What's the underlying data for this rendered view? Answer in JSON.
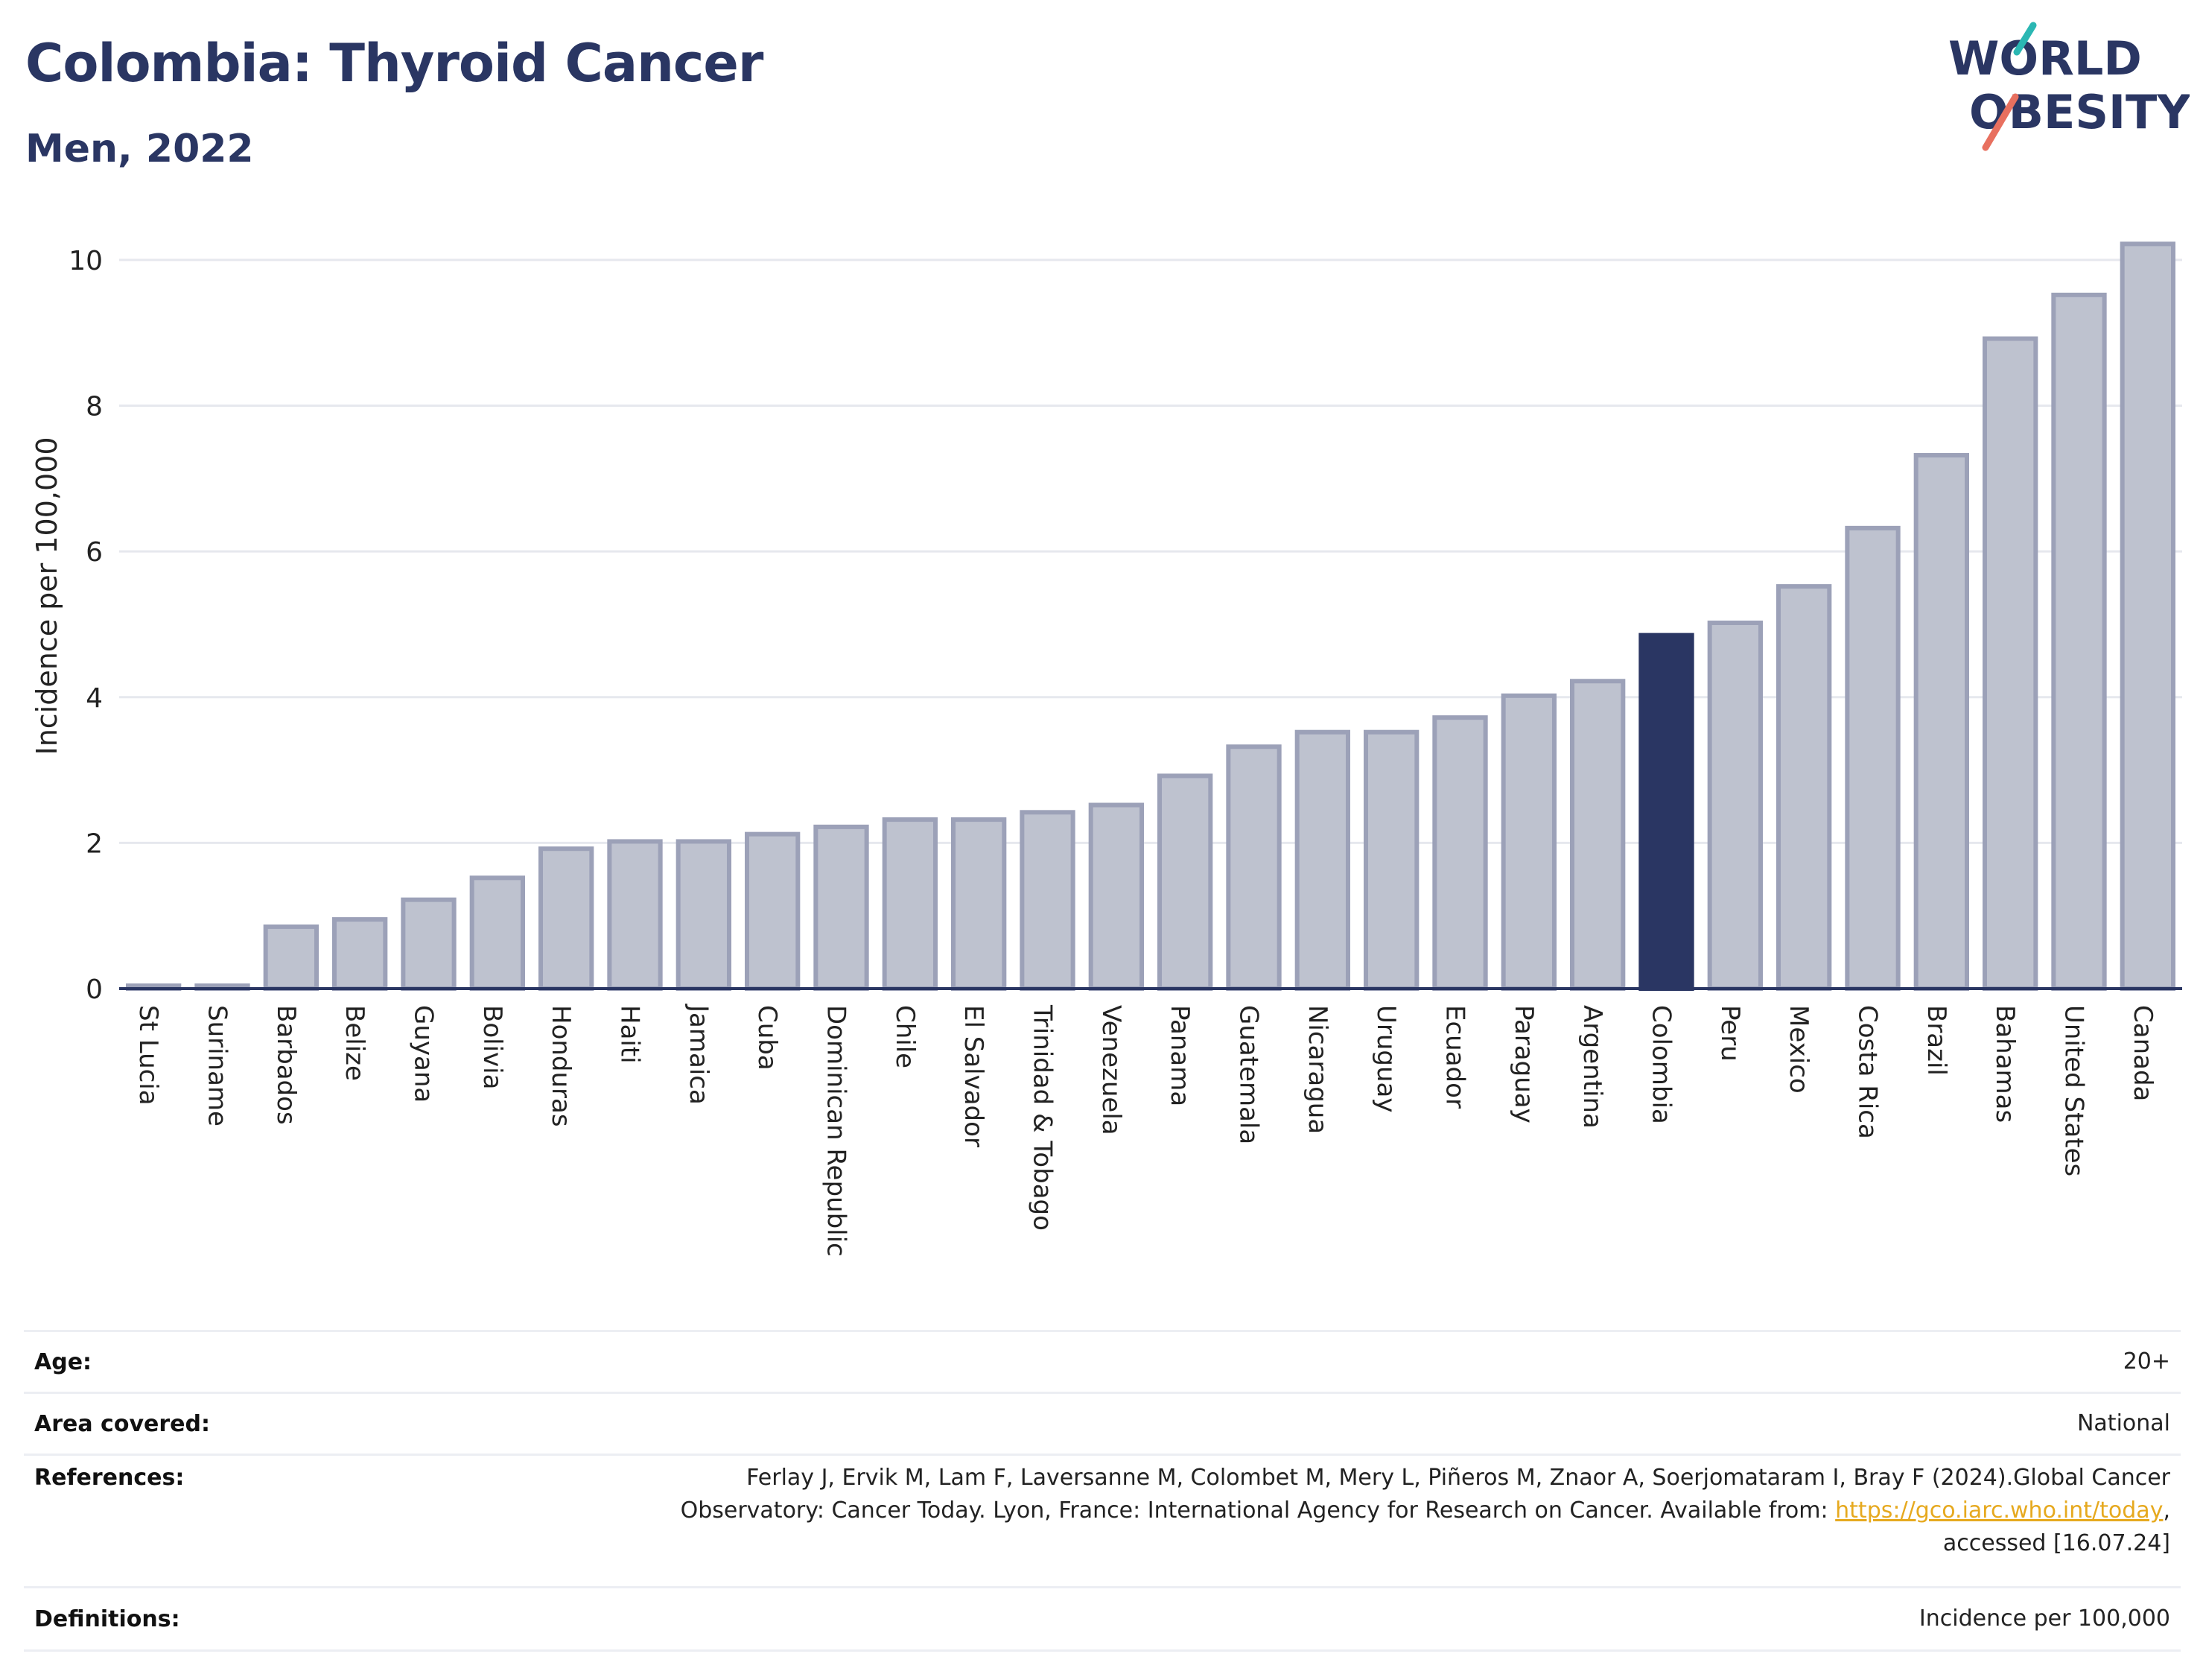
{
  "header": {
    "title": "Colombia: Thyroid Cancer",
    "subtitle": "Men, 2022"
  },
  "logo": {
    "line1": "WORLD",
    "line2": "OBESITY"
  },
  "chart_data": {
    "type": "bar",
    "ylabel": "Incidence per 100,000",
    "ylim": [
      0,
      10.5
    ],
    "yticks": [
      0,
      2,
      4,
      6,
      8,
      10
    ],
    "grid": true,
    "highlight": "Colombia",
    "colors": {
      "bar": "#bec2cf",
      "bar_border": "#9ca1b8",
      "highlight": "#2a3663",
      "grid": "#e6e8ee",
      "axis": "#2a3663"
    },
    "categories": [
      "St Lucia",
      "Suriname",
      "Barbados",
      "Belize",
      "Guyana",
      "Bolivia",
      "Honduras",
      "Haiti",
      "Jamaica",
      "Cuba",
      "Dominican Republic",
      "Chile",
      "El Salvador",
      "Trinidad & Tobago",
      "Venezuela",
      "Panama",
      "Guatemala",
      "Nicaragua",
      "Uruguay",
      "Ecuador",
      "Paraguay",
      "Argentina",
      "Colombia",
      "Peru",
      "Mexico",
      "Costa Rica",
      "Brazil",
      "Bahamas",
      "United States",
      "Canada"
    ],
    "values": [
      0.04,
      0.04,
      0.85,
      0.95,
      1.22,
      1.52,
      1.92,
      2.02,
      2.02,
      2.12,
      2.22,
      2.32,
      2.32,
      2.42,
      2.52,
      2.92,
      3.32,
      3.52,
      3.52,
      3.72,
      4.02,
      4.22,
      4.85,
      5.02,
      5.52,
      6.32,
      7.32,
      8.92,
      9.52,
      10.22
    ]
  },
  "info_table": {
    "age_label": "Age:",
    "age_value": "20+",
    "area_label": "Area covered:",
    "area_value": "National",
    "refs_label": "References:",
    "refs_line1": "Ferlay J, Ervik M, Lam F, Laversanne M, Colombet M, Mery L, Piñeros M, Znaor A, Soerjomataram I, Bray F (2024).Global Cancer",
    "refs_line2": "Observatory: Cancer Today. Lyon, France: International Agency for Research on Cancer. Available from: ",
    "refs_link": "https://gco.iarc.who.int/today",
    "refs_line2_end": ",",
    "refs_line3": "accessed [16.07.24]",
    "defs_label": "Definitions:",
    "defs_value": "Incidence per 100,000"
  }
}
